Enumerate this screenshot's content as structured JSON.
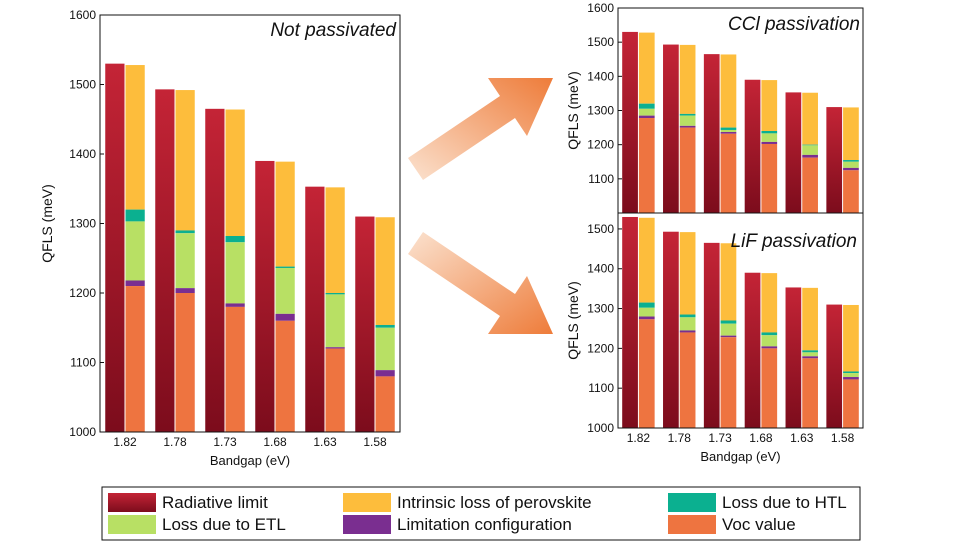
{
  "colors": {
    "radiative": "#a8152a",
    "radiative_light": "#c82838",
    "intrinsic": "#fdbd3c",
    "htl": "#0bb090",
    "etl": "#b8e064",
    "limitation": "#7a2e90",
    "voc": "#ee7440",
    "arrow": "#f08840"
  },
  "legend": [
    {
      "key": "radiative",
      "label": "Radiative limit"
    },
    {
      "key": "intrinsic",
      "label": "Intrinsic loss of perovskite"
    },
    {
      "key": "htl",
      "label": "Loss due to HTL"
    },
    {
      "key": "etl",
      "label": "Loss due to ETL"
    },
    {
      "key": "limitation",
      "label": "Limitation configuration"
    },
    {
      "key": "voc",
      "label": "Voc value"
    }
  ],
  "chart_data": [
    {
      "type": "bar",
      "title": "Not passivated",
      "ylabel": "QFLS (meV)",
      "xlabel": "Bandgap (eV)",
      "ylim": [
        1000,
        1600
      ],
      "yticks": [
        1000,
        1100,
        1200,
        1300,
        1400,
        1500,
        1600
      ],
      "categories": [
        "1.82",
        "1.78",
        "1.73",
        "1.68",
        "1.63",
        "1.58"
      ],
      "radiative_limit": [
        1530,
        1493,
        1465,
        1390,
        1353,
        1310
      ],
      "intrinsic_top": [
        1528,
        1492,
        1464,
        1389,
        1352,
        1309
      ],
      "htl_top": [
        1320,
        1290,
        1282,
        1238,
        1200,
        1154
      ],
      "etl_top": [
        1303,
        1286,
        1273,
        1236,
        1198,
        1150
      ],
      "limitation_top": [
        1218,
        1207,
        1185,
        1170,
        1122,
        1089
      ],
      "voc": [
        1210,
        1200,
        1180,
        1160,
        1120,
        1080
      ]
    },
    {
      "type": "bar",
      "title": "CCl passivation",
      "ylabel": "QFLS (meV)",
      "xlabel": "",
      "ylim": [
        1000,
        1600
      ],
      "yticks": [
        1100,
        1200,
        1300,
        1400,
        1500,
        1600
      ],
      "categories": [
        "1.82",
        "1.78",
        "1.73",
        "1.68",
        "1.63",
        "1.58"
      ],
      "radiative_limit": [
        1530,
        1493,
        1465,
        1390,
        1353,
        1310
      ],
      "intrinsic_top": [
        1528,
        1492,
        1464,
        1389,
        1352,
        1309
      ],
      "htl_top": [
        1320,
        1290,
        1250,
        1240,
        1200,
        1155
      ],
      "etl_top": [
        1305,
        1285,
        1243,
        1233,
        1198,
        1150
      ],
      "limitation_top": [
        1285,
        1255,
        1237,
        1208,
        1170,
        1132
      ],
      "voc": [
        1278,
        1250,
        1232,
        1202,
        1162,
        1125
      ]
    },
    {
      "type": "bar",
      "title": "LiF passivation",
      "ylabel": "QFLS (meV)",
      "xlabel": "Bandgap (eV)",
      "ylim": [
        1000,
        1540
      ],
      "yticks": [
        1000,
        1100,
        1200,
        1300,
        1400,
        1500
      ],
      "categories": [
        "1.82",
        "1.78",
        "1.73",
        "1.68",
        "1.63",
        "1.58"
      ],
      "radiative_limit": [
        1530,
        1493,
        1465,
        1390,
        1353,
        1310
      ],
      "intrinsic_top": [
        1528,
        1492,
        1464,
        1389,
        1352,
        1309
      ],
      "htl_top": [
        1315,
        1285,
        1270,
        1240,
        1195,
        1142
      ],
      "etl_top": [
        1302,
        1278,
        1262,
        1233,
        1190,
        1138
      ],
      "limitation_top": [
        1280,
        1245,
        1232,
        1205,
        1180,
        1128
      ],
      "voc": [
        1273,
        1240,
        1228,
        1200,
        1175,
        1122
      ]
    }
  ]
}
